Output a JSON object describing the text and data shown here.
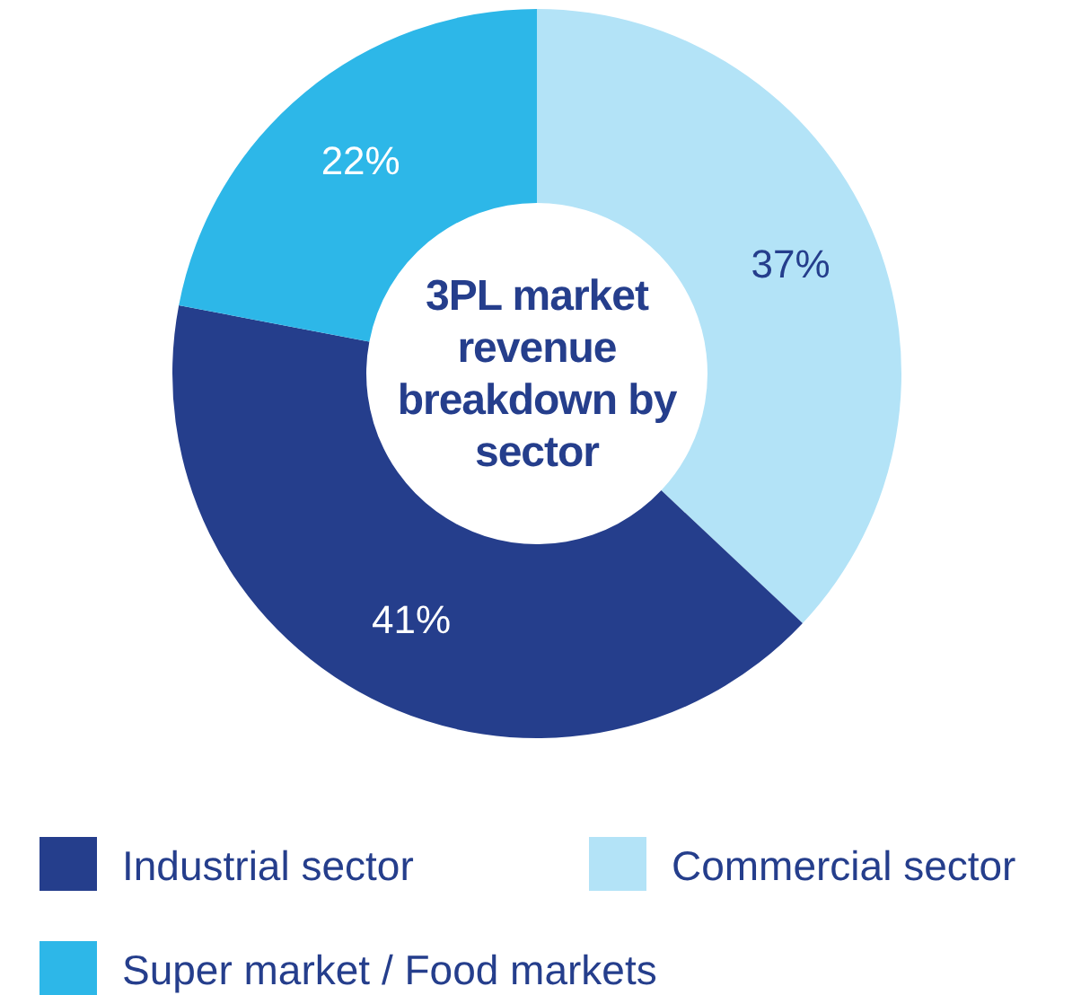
{
  "chart_data": {
    "type": "donut",
    "title": "3PL market revenue breakdown by sector",
    "categories": [
      "Commercial sector",
      "Industrial sector",
      "Super market / Food markets"
    ],
    "values": [
      37,
      41,
      22
    ],
    "colors": [
      "#b3e3f7",
      "#253e8c",
      "#2db7e8"
    ],
    "value_labels": [
      "37%",
      "41%",
      "22%"
    ],
    "legend": "bottom"
  }
}
